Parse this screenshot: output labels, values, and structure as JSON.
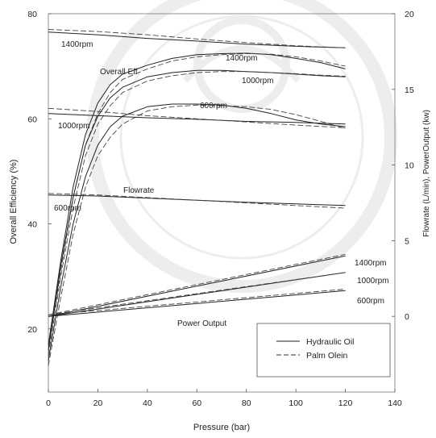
{
  "chart_data": {
    "type": "line",
    "xlabel": "Pressure (bar)",
    "ylabel_left": "Overall Efficiency (%)",
    "ylabel_right": "Flowrate (L/min), PowerOutput (kw)",
    "xlim": [
      0,
      140
    ],
    "ylim_left": [
      8,
      80
    ],
    "ylim_right": [
      -5,
      20
    ],
    "x_ticks": [
      "0",
      "20",
      "40",
      "60",
      "80",
      "100",
      "120",
      "140"
    ],
    "y_ticks_left": [
      "20",
      "40",
      "60",
      "80"
    ],
    "y_ticks_right": [
      "0",
      "5",
      "10",
      "15",
      "20"
    ],
    "grid": false,
    "legend": {
      "position": "bottom-right",
      "entries": [
        {
          "label": "Hydraulic Oil",
          "style": "solid"
        },
        {
          "label": "Palm Olein",
          "style": "dashed"
        }
      ]
    },
    "annotations": {
      "overall_eff": "Overall Eff",
      "flowrate": "Flowrate",
      "power_output": "Power Output",
      "eff_1400": "1400rpm",
      "eff_1000": "1000rpm",
      "eff_600": "600rpm",
      "flow_1400": "1400rpm",
      "flow_1000": "1000rpm",
      "flow_600": "600rpm",
      "power_1400": "1400rpm",
      "power_1000": "1000rpm",
      "power_600": "600rpm"
    },
    "series": [
      {
        "group": "overall_eff",
        "rpm": "1400rpm",
        "fluid": "Hydraulic Oil",
        "axis": "left",
        "x": [
          0,
          5,
          10,
          15,
          20,
          25,
          30,
          40,
          50,
          60,
          70,
          80,
          90,
          100,
          110,
          120
        ],
        "y": [
          17,
          33,
          47,
          57,
          63,
          66.5,
          68.5,
          70.2,
          71.5,
          72.2,
          72.4,
          72.5,
          72.2,
          71.5,
          70.7,
          69.5
        ]
      },
      {
        "group": "overall_eff",
        "rpm": "1400rpm",
        "fluid": "Palm Olein",
        "axis": "left",
        "x": [
          0,
          5,
          10,
          15,
          20,
          25,
          30,
          40,
          50,
          60,
          70,
          80,
          90,
          100,
          110,
          120
        ],
        "y": [
          16,
          31,
          45,
          55,
          61,
          65,
          67.5,
          69.5,
          71,
          71.8,
          72.2,
          72.4,
          72.3,
          71.8,
          71,
          70
        ]
      },
      {
        "group": "overall_eff",
        "rpm": "1000rpm",
        "fluid": "Hydraulic Oil",
        "axis": "left",
        "x": [
          0,
          5,
          10,
          15,
          20,
          25,
          30,
          40,
          50,
          60,
          70,
          80,
          90,
          100,
          110,
          120
        ],
        "y": [
          16,
          32,
          45,
          55,
          60.5,
          64,
          66,
          68,
          68.8,
          69.2,
          69.2,
          69,
          68.8,
          68.5,
          68.2,
          68
        ]
      },
      {
        "group": "overall_eff",
        "rpm": "1000rpm",
        "fluid": "Palm Olein",
        "axis": "left",
        "x": [
          0,
          5,
          10,
          15,
          20,
          25,
          30,
          40,
          50,
          60,
          70,
          80,
          90,
          100,
          110,
          120
        ],
        "y": [
          15,
          30,
          43,
          53,
          59,
          62.5,
          65,
          67.2,
          68.2,
          68.8,
          69,
          69,
          68.8,
          68.6,
          68.3,
          68.1
        ]
      },
      {
        "group": "overall_eff",
        "rpm": "600rpm",
        "fluid": "Hydraulic Oil",
        "axis": "left",
        "x": [
          0,
          5,
          10,
          15,
          20,
          25,
          30,
          40,
          50,
          60,
          70,
          80,
          90,
          100,
          110,
          120
        ],
        "y": [
          14,
          28,
          40,
          49,
          55,
          58.5,
          60.5,
          62.3,
          62.8,
          62.8,
          62.6,
          62,
          61,
          59.8,
          59,
          58.5
        ]
      },
      {
        "group": "overall_eff",
        "rpm": "600rpm",
        "fluid": "Palm Olein",
        "axis": "left",
        "x": [
          0,
          5,
          10,
          15,
          20,
          25,
          30,
          40,
          50,
          60,
          70,
          80,
          90,
          100,
          110,
          120
        ],
        "y": [
          13,
          26,
          38,
          47,
          53,
          56.5,
          59,
          61.5,
          62.3,
          62.6,
          62.5,
          62.3,
          61.8,
          60.8,
          59.5,
          58.2
        ]
      },
      {
        "group": "flowrate",
        "rpm": "1400rpm",
        "fluid": "Hydraulic Oil",
        "axis": "left",
        "x": [
          0,
          20,
          40,
          60,
          80,
          100,
          120
        ],
        "y": [
          76.5,
          76,
          75.3,
          74.8,
          74.2,
          73.8,
          73.5
        ]
      },
      {
        "group": "flowrate",
        "rpm": "1400rpm",
        "fluid": "Palm Olein",
        "axis": "left",
        "x": [
          0,
          20,
          40,
          60,
          80,
          100,
          120
        ],
        "y": [
          77,
          76.6,
          76,
          75.2,
          74.5,
          73.9,
          73.5
        ]
      },
      {
        "group": "flowrate",
        "rpm": "1000rpm",
        "fluid": "Hydraulic Oil",
        "axis": "left",
        "x": [
          0,
          20,
          40,
          60,
          80,
          100,
          120
        ],
        "y": [
          61,
          60.6,
          60.2,
          59.9,
          59.5,
          59.3,
          59
        ]
      },
      {
        "group": "flowrate",
        "rpm": "1000rpm",
        "fluid": "Palm Olein",
        "axis": "left",
        "x": [
          0,
          20,
          40,
          60,
          80,
          100,
          120
        ],
        "y": [
          62,
          61.4,
          60.6,
          60,
          59.4,
          58.8,
          58.3
        ]
      },
      {
        "group": "flowrate",
        "rpm": "600rpm",
        "fluid": "Hydraulic Oil",
        "axis": "left",
        "x": [
          0,
          20,
          40,
          60,
          80,
          100,
          120
        ],
        "y": [
          45.5,
          45.3,
          44.9,
          44.5,
          44.1,
          43.8,
          43.5
        ]
      },
      {
        "group": "flowrate",
        "rpm": "600rpm",
        "fluid": "Palm Olein",
        "axis": "left",
        "x": [
          0,
          20,
          40,
          60,
          80,
          100,
          120
        ],
        "y": [
          45.8,
          45.5,
          45,
          44.5,
          44,
          43.5,
          43
        ]
      },
      {
        "group": "power_output",
        "rpm": "1400rpm",
        "fluid": "Hydraulic Oil",
        "axis": "right",
        "x": [
          0,
          120
        ],
        "y": [
          0,
          4.0
        ]
      },
      {
        "group": "power_output",
        "rpm": "1400rpm",
        "fluid": "Palm Olein",
        "axis": "right",
        "x": [
          0,
          120
        ],
        "y": [
          0.1,
          4.1
        ]
      },
      {
        "group": "power_output",
        "rpm": "1000rpm",
        "fluid": "Hydraulic Oil",
        "axis": "right",
        "x": [
          0,
          120
        ],
        "y": [
          0,
          2.9
        ]
      },
      {
        "group": "power_output",
        "rpm": "1000rpm",
        "fluid": "Palm Olein",
        "axis": "right",
        "x": [
          0,
          120
        ],
        "y": [
          0.1,
          2.9
        ]
      },
      {
        "group": "power_output",
        "rpm": "600rpm",
        "fluid": "Hydraulic Oil",
        "axis": "right",
        "x": [
          0,
          120
        ],
        "y": [
          0,
          1.7
        ]
      },
      {
        "group": "power_output",
        "rpm": "600rpm",
        "fluid": "Palm Olein",
        "axis": "right",
        "x": [
          0,
          120
        ],
        "y": [
          0.1,
          1.8
        ]
      }
    ]
  }
}
